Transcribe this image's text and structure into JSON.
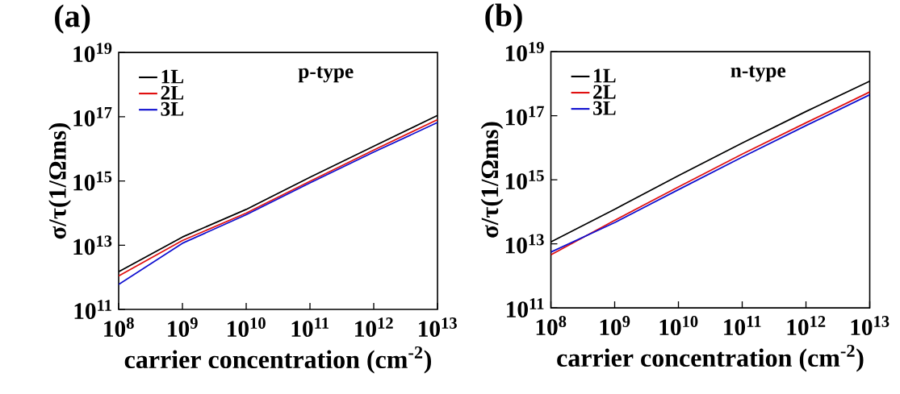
{
  "chart_data": [
    {
      "type": "line",
      "title": "(a)",
      "xlabel": "carrier  concentration (cm$^{-2}$)",
      "ylabel": "σ/τ(1/Ωms)",
      "annotations": [
        "p-type"
      ],
      "log": "xy",
      "legend": "top left",
      "grid": false,
      "line_style": "solid",
      "marker": "none",
      "x": [
        100000000.0,
        1000000000.0,
        10000000000.0,
        100000000000.0,
        1000000000000.0,
        10000000000000.0
      ],
      "xlim": [
        100000000.0,
        10000000000000.0
      ],
      "ylim": [
        100000000000.0,
        1e+19
      ],
      "xticks": [
        {
          "value": 100000000.0,
          "label": "10$^{8}$"
        },
        {
          "value": 1000000000.0,
          "label": "10$^{9}$"
        },
        {
          "value": 10000000000.0,
          "label": "10$^{10}$"
        },
        {
          "value": 100000000000.0,
          "label": "10$^{11}$"
        },
        {
          "value": 1000000000000.0,
          "label": "10$^{12}$"
        },
        {
          "value": 10000000000000.0,
          "label": "10$^{13}$"
        }
      ],
      "yticks": [
        {
          "value": 100000000000.0,
          "label": "10$^{11}$"
        },
        {
          "value": 10000000000000.0,
          "label": "10$^{13}$"
        },
        {
          "value": 1000000000000000.0,
          "label": "10$^{15}$"
        },
        {
          "value": 1e+17,
          "label": "10$^{17}$"
        },
        {
          "value": 1e+19,
          "label": "10$^{19}$"
        }
      ],
      "series": [
        {
          "name": "1L",
          "color": "#000000",
          "values": [
            1500000000000.0,
            18000000000000.0,
            130000000000000.0,
            1300000000000000.0,
            1.2e+16,
            1.1e+17
          ]
        },
        {
          "name": "2L",
          "color": "#e01010",
          "values": [
            1100000000000.0,
            14000000000000.0,
            100000000000000.0,
            980000000000000.0,
            9100000000000000.0,
            8.1e+16
          ]
        },
        {
          "name": "3L",
          "color": "#1010d0",
          "values": [
            600000000000.0,
            11500000000000.0,
            89000000000000.0,
            870000000000000.0,
            7900000000000000.0,
            6.6e+16
          ]
        }
      ]
    },
    {
      "type": "line",
      "title": "(b)",
      "xlabel": "carrier  concentration (cm$^{-2}$)",
      "ylabel": "σ/τ(1/Ωms)",
      "annotations": [
        "n-type"
      ],
      "log": "xy",
      "legend": "top left",
      "grid": false,
      "line_style": "solid",
      "marker": "none",
      "x": [
        100000000.0,
        1000000000.0,
        10000000000.0,
        100000000000.0,
        1000000000000.0,
        10000000000000.0
      ],
      "xlim": [
        100000000.0,
        10000000000000.0
      ],
      "ylim": [
        100000000000.0,
        1e+19
      ],
      "xticks": [
        {
          "value": 100000000.0,
          "label": "10$^{8}$"
        },
        {
          "value": 1000000000.0,
          "label": "10$^{9}$"
        },
        {
          "value": 10000000000.0,
          "label": "10$^{10}$"
        },
        {
          "value": 100000000000.0,
          "label": "10$^{11}$"
        },
        {
          "value": 1000000000000.0,
          "label": "10$^{12}$"
        },
        {
          "value": 10000000000000.0,
          "label": "10$^{13}$"
        }
      ],
      "yticks": [
        {
          "value": 100000000000.0,
          "label": "10$^{11}$"
        },
        {
          "value": 10000000000000.0,
          "label": "10$^{13}$"
        },
        {
          "value": 1000000000000000.0,
          "label": "10$^{15}$"
        },
        {
          "value": 1e+17,
          "label": "10$^{17}$"
        },
        {
          "value": 1e+19,
          "label": "10$^{19}$"
        }
      ],
      "series": [
        {
          "name": "1L",
          "color": "#000000",
          "values": [
            11500000000000.0,
            120000000000000.0,
            1350000000000000.0,
            1.4e+16,
            1.35e+17,
            1.2e+18
          ]
        },
        {
          "name": "2L",
          "color": "#e01010",
          "values": [
            4500000000000.0,
            54000000000000.0,
            600000000000000.0,
            6300000000000000.0,
            6e+16,
            5.5e+17
          ]
        },
        {
          "name": "3L",
          "color": "#1010d0",
          "values": [
            5500000000000.0,
            46000000000000.0,
            490000000000000.0,
            5100000000000000.0,
            4.9e+16,
            4.5e+17
          ]
        }
      ]
    }
  ]
}
